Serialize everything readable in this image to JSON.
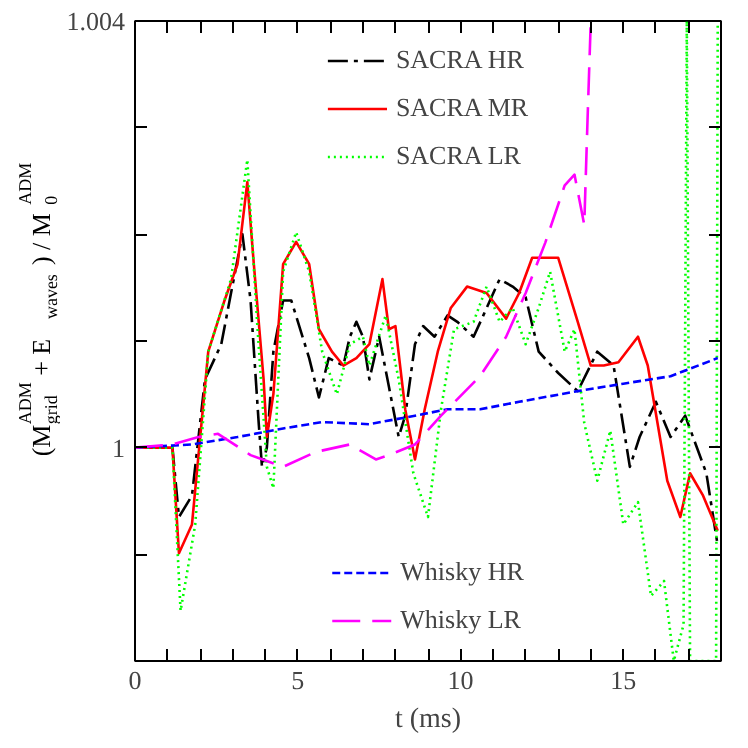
{
  "chart_data": {
    "type": "line",
    "xlabel": "t (ms)",
    "ylabel": "(M$_{grid}$$^{ADM}$ + E$_{waves}$) / M$_{0}$$^{ADM}$",
    "xlim": [
      0,
      18
    ],
    "ylim": [
      0.998,
      1.004
    ],
    "xticks": [
      0,
      {
        "value": 1,
        "label": null
      },
      {
        "value": 2,
        "label": null
      },
      {
        "value": 3,
        "label": null
      },
      {
        "value": 4,
        "label": null
      },
      5,
      {
        "value": 6,
        "label": null
      },
      {
        "value": 7,
        "label": null
      },
      {
        "value": 8,
        "label": null
      },
      {
        "value": 9,
        "label": null
      },
      10,
      {
        "value": 11,
        "label": null
      },
      {
        "value": 12,
        "label": null
      },
      {
        "value": 13,
        "label": null
      },
      {
        "value": 14,
        "label": null
      },
      15,
      {
        "value": 16,
        "label": null
      },
      {
        "value": 17,
        "label": null
      }
    ],
    "yticks": [
      {
        "value": 0.998,
        "label": null
      },
      {
        "value": 0.999,
        "label": null
      },
      1,
      {
        "value": 1.001,
        "label": null
      },
      {
        "value": 1.002,
        "label": null
      },
      {
        "value": 1.003,
        "label": null
      },
      1.004
    ],
    "grid": false,
    "legend": "center",
    "series": [
      {
        "name": "SACRA HR",
        "color": "#000000",
        "line_style": "dashdot",
        "x": [
          0,
          1.15,
          1.35,
          1.75,
          2.15,
          2.65,
          2.95,
          3.3,
          3.55,
          3.8,
          3.9,
          4.05,
          4.25,
          4.55,
          4.8,
          5.35,
          5.65,
          5.95,
          6.4,
          6.6,
          6.8,
          7.0,
          7.2,
          7.5,
          7.8,
          8.1,
          8.3,
          8.6,
          8.85,
          9.2,
          9.6,
          9.9,
          10.4,
          10.7,
          11.2,
          11.6,
          12.0,
          12.4,
          13.0,
          13.6,
          14.2,
          14.7,
          15.2,
          15.5,
          16.0,
          16.45,
          16.9,
          17.55,
          17.9
        ],
        "values": [
          1.0,
          1.0,
          0.99935,
          0.99955,
          1.00064,
          1.00097,
          1.00145,
          1.002,
          1.00138,
          1.00023,
          0.99982,
          1.0,
          1.0009,
          1.00138,
          1.00138,
          1.00084,
          1.00047,
          1.00084,
          1.00077,
          1.00104,
          1.00118,
          1.00104,
          1.00064,
          1.00104,
          1.00057,
          1.0001,
          1.0003,
          1.00097,
          1.00114,
          1.00104,
          1.00124,
          1.00118,
          1.00104,
          1.00124,
          1.00158,
          1.00151,
          1.00141,
          1.0009,
          1.0007,
          1.00053,
          1.0009,
          1.00077,
          0.99982,
          1.0001,
          1.00043,
          1.0001,
          1.0003,
          0.99976,
          0.99908
        ]
      },
      {
        "name": "SACRA MR",
        "color": "#ff0000",
        "line_style": "solid",
        "x": [
          0,
          1.15,
          1.35,
          1.75,
          2.25,
          2.75,
          3.15,
          3.45,
          3.65,
          3.95,
          4.05,
          4.25,
          4.55,
          4.95,
          5.35,
          5.65,
          6.05,
          6.4,
          6.8,
          7.2,
          7.6,
          7.8,
          8.0,
          8.3,
          8.6,
          8.9,
          9.3,
          9.7,
          10.2,
          10.8,
          11.4,
          11.8,
          12.2,
          12.8,
          13.0,
          13.6,
          14.0,
          14.4,
          14.85,
          15.45,
          15.75,
          16.35,
          16.75,
          17.05,
          17.45,
          17.9
        ],
        "values": [
          1.0,
          1.0,
          0.99901,
          0.99928,
          1.0009,
          1.00138,
          1.00172,
          1.00249,
          1.00172,
          1.00064,
          1.0001,
          1.0005,
          1.00172,
          1.00193,
          1.00172,
          1.00111,
          1.0009,
          1.00077,
          1.00084,
          1.00097,
          1.00158,
          1.00111,
          1.00114,
          1.00036,
          0.99989,
          1.00036,
          1.0009,
          1.00131,
          1.00151,
          1.00145,
          1.00121,
          1.00145,
          1.00178,
          1.00178,
          1.00178,
          1.00118,
          1.00077,
          1.00077,
          1.0008,
          1.00104,
          1.00077,
          0.99969,
          0.99935,
          0.99976,
          0.99955,
          0.99922
        ]
      },
      {
        "name": "SACRA LR",
        "color": "#00ff00",
        "line_style": "dotted",
        "x": [
          0,
          1.15,
          1.4,
          1.85,
          2.25,
          2.95,
          3.45,
          3.75,
          4.05,
          4.25,
          4.55,
          4.95,
          5.35,
          5.75,
          6.2,
          6.6,
          7.0,
          7.2,
          7.7,
          8.1,
          8.55,
          9.0,
          9.4,
          9.8,
          10.4,
          10.8,
          11.2,
          11.6,
          12.0,
          12.4,
          12.75,
          13.2,
          13.5,
          13.8,
          14.2,
          14.6,
          15.0,
          15.45,
          15.85,
          16.25,
          16.55,
          16.85,
          16.95,
          17.05,
          17.85,
          17.9
        ],
        "values": [
          1.0,
          1.0,
          0.99847,
          0.99928,
          1.0009,
          1.00158,
          1.0027,
          1.00118,
          0.99982,
          0.99962,
          1.00165,
          1.00202,
          1.00165,
          1.0009,
          1.0005,
          1.00097,
          1.00104,
          1.00077,
          1.00124,
          1.00064,
          0.99976,
          0.99935,
          1.00036,
          1.00111,
          1.00118,
          1.00151,
          1.00118,
          1.00131,
          1.00097,
          1.00131,
          1.00165,
          1.0009,
          1.00111,
          1.00023,
          0.99969,
          1.00016,
          0.99928,
          0.99949,
          0.99861,
          0.99875,
          0.998,
          0.99834,
          1.004,
          0.998,
          0.998,
          1.004
        ]
      },
      {
        "name": "Whisky HR",
        "color": "#0000ff",
        "line_style": "dashed",
        "x": [
          0,
          1.75,
          3.15,
          4.55,
          5.75,
          7.2,
          8.6,
          9.6,
          10.6,
          11.8,
          13.6,
          15.0,
          16.45,
          17.9
        ],
        "values": [
          1.0,
          1.00003,
          1.0001,
          1.00018,
          1.00024,
          1.00022,
          1.0003,
          1.00036,
          1.00036,
          1.00043,
          1.00053,
          1.0006,
          1.00067,
          1.00084
        ]
      },
      {
        "name": "Whisky LR",
        "color": "#ff00ff",
        "line_style": "longdash",
        "x": [
          0,
          1.15,
          1.95,
          2.55,
          3.55,
          4.55,
          5.55,
          6.6,
          7.4,
          7.8,
          8.6,
          9.4,
          10.6,
          11.4,
          12.0,
          12.6,
          13.2,
          13.5,
          13.8,
          13.9,
          14.0
        ],
        "values": [
          1.0,
          1.00003,
          1.0001,
          1.00013,
          0.99993,
          0.99982,
          0.99996,
          1.00003,
          0.99989,
          0.99993,
          1.00003,
          1.0003,
          1.00067,
          1.00104,
          1.00145,
          1.00192,
          1.00246,
          1.00256,
          1.00209,
          1.00307,
          1.004
        ]
      }
    ]
  }
}
